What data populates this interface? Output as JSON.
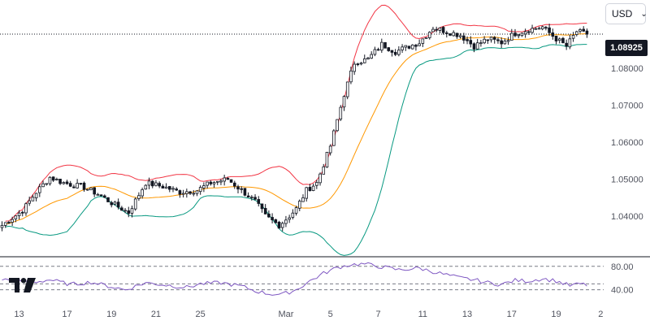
{
  "currency_selector": {
    "label": "USD",
    "icon": "chevron-down-icon"
  },
  "last_price_label": "1.08925",
  "logo": {
    "name": "tradingview-logo",
    "text": "TV"
  },
  "chart_data": [
    {
      "type": "candlestick",
      "title": "",
      "last_price": 1.08925,
      "ylim": [
        1.029,
        1.0985
      ],
      "y_ticks": [
        "1.08000",
        "1.07000",
        "1.06000",
        "1.05000",
        "1.04000"
      ],
      "x_ticks": [
        "13",
        "17",
        "19",
        "21",
        "25",
        "Mar",
        "5",
        "7",
        "11",
        "13",
        "17",
        "19",
        "2"
      ],
      "x_tick_index": [
        5,
        19,
        32,
        45,
        58,
        83,
        96,
        110,
        123,
        136,
        149,
        162,
        175
      ],
      "n_candles": 172,
      "close_anchors": [
        [
          0,
          1.0375
        ],
        [
          6,
          1.0415
        ],
        [
          10,
          1.0465
        ],
        [
          14,
          1.0505
        ],
        [
          18,
          1.049
        ],
        [
          24,
          1.0478
        ],
        [
          28,
          1.046
        ],
        [
          33,
          1.043
        ],
        [
          37,
          1.041
        ],
        [
          42,
          1.049
        ],
        [
          47,
          1.048
        ],
        [
          52,
          1.0465
        ],
        [
          57,
          1.047
        ],
        [
          61,
          1.049
        ],
        [
          66,
          1.05
        ],
        [
          70,
          1.047
        ],
        [
          74,
          1.044
        ],
        [
          77,
          1.04
        ],
        [
          81,
          1.0375
        ],
        [
          84,
          1.04
        ],
        [
          86,
          1.042
        ],
        [
          89,
          1.047
        ],
        [
          92,
          1.049
        ],
        [
          96,
          1.059
        ],
        [
          100,
          1.073
        ],
        [
          103,
          1.0815
        ],
        [
          107,
          1.0825
        ],
        [
          111,
          1.0865
        ],
        [
          115,
          1.0845
        ],
        [
          119,
          1.086
        ],
        [
          122,
          1.087
        ],
        [
          126,
          1.091
        ],
        [
          130,
          1.09
        ],
        [
          134,
          1.089
        ],
        [
          138,
          1.086
        ],
        [
          142,
          1.088
        ],
        [
          146,
          1.087
        ],
        [
          150,
          1.0895
        ],
        [
          154,
          1.0905
        ],
        [
          158,
          1.0912
        ],
        [
          162,
          1.088
        ],
        [
          165,
          1.086
        ],
        [
          168,
          1.09
        ],
        [
          171,
          1.0892
        ]
      ],
      "indicators": {
        "bollinger": {
          "upper_color": "#f23645",
          "basis_color": "#ff9800",
          "lower_color": "#089981"
        }
      }
    },
    {
      "type": "line",
      "name": "oscillator",
      "ylim": [
        20,
        95
      ],
      "levels": [
        80,
        50,
        40
      ],
      "y_ticks": [
        "80.00",
        "40.00"
      ],
      "color": "#7e57c2",
      "anchors": [
        [
          0,
          58
        ],
        [
          8,
          52
        ],
        [
          14,
          57
        ],
        [
          20,
          49
        ],
        [
          26,
          53
        ],
        [
          32,
          45
        ],
        [
          36,
          40
        ],
        [
          42,
          52
        ],
        [
          48,
          48
        ],
        [
          54,
          44
        ],
        [
          58,
          50
        ],
        [
          64,
          52
        ],
        [
          70,
          46
        ],
        [
          74,
          38
        ],
        [
          78,
          33
        ],
        [
          82,
          32
        ],
        [
          86,
          40
        ],
        [
          90,
          55
        ],
        [
          94,
          68
        ],
        [
          98,
          78
        ],
        [
          102,
          83
        ],
        [
          106,
          84
        ],
        [
          110,
          80
        ],
        [
          116,
          74
        ],
        [
          122,
          77
        ],
        [
          128,
          68
        ],
        [
          134,
          60
        ],
        [
          138,
          57
        ],
        [
          142,
          52
        ],
        [
          146,
          49
        ],
        [
          150,
          56
        ],
        [
          154,
          55
        ],
        [
          158,
          59
        ],
        [
          162,
          55
        ],
        [
          166,
          47
        ],
        [
          169,
          50
        ],
        [
          171,
          48
        ]
      ]
    }
  ]
}
